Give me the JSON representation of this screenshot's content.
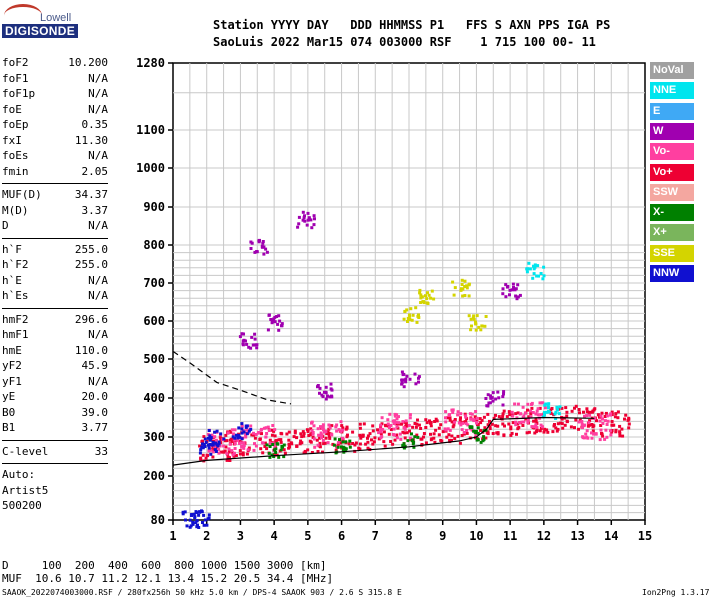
{
  "logo": {
    "top": "Lowell",
    "bottom": "DIGISONDE"
  },
  "header": {
    "line1": "Station YYYY DAY   DDD HHMMSS P1   FFS S AXN PPS IGA PS",
    "line2": "SaoLuis 2022 Mar15 074 003000 RSF    1 715 100 00- 11"
  },
  "params_group1": [
    {
      "k": "foF2",
      "v": "10.200"
    },
    {
      "k": "foF1",
      "v": "N/A"
    },
    {
      "k": "foF1p",
      "v": "N/A"
    },
    {
      "k": "foE",
      "v": "N/A"
    },
    {
      "k": "foEp",
      "v": "0.35"
    },
    {
      "k": "fxI",
      "v": "11.30"
    },
    {
      "k": "foEs",
      "v": "N/A"
    },
    {
      "k": "fmin",
      "v": "2.05"
    }
  ],
  "params_group2": [
    {
      "k": "MUF(D)",
      "v": "34.37"
    },
    {
      "k": "M(D)",
      "v": "3.37"
    },
    {
      "k": "D",
      "v": "N/A"
    }
  ],
  "params_group3": [
    {
      "k": "h`F",
      "v": "255.0"
    },
    {
      "k": "h`F2",
      "v": "255.0"
    },
    {
      "k": "h`E",
      "v": "N/A"
    },
    {
      "k": "h`Es",
      "v": "N/A"
    }
  ],
  "params_group4": [
    {
      "k": "hmF2",
      "v": "296.6"
    },
    {
      "k": "hmF1",
      "v": "N/A"
    },
    {
      "k": "hmE",
      "v": "110.0"
    },
    {
      "k": "yF2",
      "v": "45.9"
    },
    {
      "k": "yF1",
      "v": "N/A"
    },
    {
      "k": "yE",
      "v": "20.0"
    },
    {
      "k": "B0",
      "v": "39.0"
    },
    {
      "k": "B1",
      "v": "3.77"
    }
  ],
  "clevel": {
    "k": "C-level",
    "v": "33"
  },
  "auto": {
    "line1": "Auto:",
    "line2": "Artist5",
    "line3": "500200"
  },
  "legend": [
    {
      "label": "NoVal",
      "color": "#a0a0a0"
    },
    {
      "label": "NNE",
      "color": "#00e5ee"
    },
    {
      "label": "E",
      "color": "#3fa9f5"
    },
    {
      "label": "W",
      "color": "#a000b0"
    },
    {
      "label": "Vo-",
      "color": "#ff3fa0"
    },
    {
      "label": "Vo+",
      "color": "#ee0033"
    },
    {
      "label": "SSW",
      "color": "#f4a7a0"
    },
    {
      "label": "X-",
      "color": "#008000"
    },
    {
      "label": "X+",
      "color": "#7ab55c"
    },
    {
      "label": "SSE",
      "color": "#d4d400"
    },
    {
      "label": "NNW",
      "color": "#1010d0"
    }
  ],
  "footer": {
    "d_row": "D     100  200  400  600  800 1000 1500 3000 [km]",
    "muf_row": "MUF  10.6 10.7 11.2 12.1 13.4 15.2 20.5 34.4 [MHz]",
    "info": "SAAOK_2022074003000.RSF / 280fx256h 50 kHz 5.0 km / DPS-4 SAAOK 903 / 2.6 S 315.8 E",
    "version": "Ion2Png 1.3.17"
  },
  "chart_data": {
    "type": "scatter",
    "title": "",
    "xlabel": "",
    "ylabel": "",
    "xlim": [
      1,
      15
    ],
    "ylim": [
      80,
      1280
    ],
    "x_ticks": [
      1,
      2,
      3,
      4,
      5,
      6,
      7,
      8,
      9,
      10,
      11,
      12,
      13,
      14,
      15
    ],
    "y_ticks": [
      80,
      200,
      300,
      400,
      500,
      600,
      700,
      800,
      900,
      1000,
      1100,
      1280
    ],
    "y_scale_note": "nonlinear virtual height axis",
    "grid": true,
    "series": [
      {
        "name": "Vo+",
        "values": [
          [
            2.2,
            275
          ],
          [
            3,
            285
          ],
          [
            4,
            290
          ],
          [
            5,
            295
          ],
          [
            6,
            300
          ],
          [
            7,
            305
          ],
          [
            8,
            315
          ],
          [
            9,
            320
          ],
          [
            10,
            330
          ],
          [
            11,
            340
          ],
          [
            12,
            345
          ],
          [
            13,
            350
          ],
          [
            14,
            335
          ]
        ]
      },
      {
        "name": "Vo-",
        "values": [
          [
            2.5,
            290
          ],
          [
            3.5,
            300
          ],
          [
            5.5,
            310
          ],
          [
            7.5,
            330
          ],
          [
            9.5,
            340
          ],
          [
            11.5,
            360
          ],
          [
            13.5,
            330
          ]
        ]
      },
      {
        "name": "W",
        "values": [
          [
            3.2,
            550
          ],
          [
            4,
            600
          ],
          [
            5.5,
            420
          ],
          [
            8,
            450
          ],
          [
            10.5,
            400
          ],
          [
            11,
            680
          ],
          [
            3.5,
            800
          ],
          [
            4.9,
            870
          ]
        ]
      },
      {
        "name": "NNW",
        "values": [
          [
            1.5,
            85
          ],
          [
            1.8,
            90
          ],
          [
            2.2,
            300
          ],
          [
            3,
            320
          ],
          [
            2,
            280
          ]
        ]
      },
      {
        "name": "SSE",
        "values": [
          [
            8.5,
            670
          ],
          [
            9.5,
            690
          ],
          [
            10,
            600
          ],
          [
            8,
            620
          ]
        ]
      },
      {
        "name": "X-",
        "values": [
          [
            4,
            270
          ],
          [
            6,
            280
          ],
          [
            8,
            295
          ],
          [
            10,
            310
          ]
        ]
      },
      {
        "name": "NNE",
        "values": [
          [
            11.7,
            735
          ],
          [
            12.2,
            370
          ]
        ]
      }
    ],
    "lines": [
      {
        "name": "profile",
        "style": "solid",
        "points": [
          [
            1,
            228
          ],
          [
            2,
            240
          ],
          [
            4,
            252
          ],
          [
            6,
            262
          ],
          [
            8,
            275
          ],
          [
            9.5,
            290
          ],
          [
            10,
            300
          ],
          [
            10.3,
            320
          ],
          [
            10.5,
            345
          ],
          [
            12,
            350
          ],
          [
            13.5,
            348
          ]
        ]
      },
      {
        "name": "extrapolation",
        "style": "dashed",
        "points": [
          [
            1,
            520
          ],
          [
            1.5,
            490
          ],
          [
            2.3,
            440
          ],
          [
            3,
            420
          ],
          [
            3.8,
            395
          ],
          [
            4.5,
            385
          ]
        ]
      }
    ]
  }
}
